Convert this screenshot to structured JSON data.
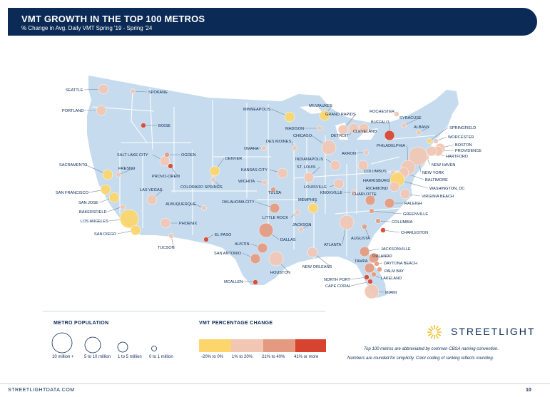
{
  "header": {
    "title": "VMT GROWTH IN THE TOP 100 METROS",
    "subtitle": "% Change in Avg. Daily VMT Spring '19 - Spring '24"
  },
  "colors": {
    "navy": "#0b2a55",
    "land": "#c6dcee",
    "state_border": "#ffffff",
    "neg_20_to_0": "#fcd56b",
    "pos_1_to_20": "#f1c6b3",
    "pos_21_to_40": "#e49a80",
    "pos_41_plus": "#d7432e"
  },
  "cities": [
    {
      "name": "SEATTLE",
      "pop": "1 to 5 million",
      "change": "1% to 20%"
    },
    {
      "name": "SPOKANE",
      "pop": "0 to 1 million",
      "change": "1% to 20%"
    },
    {
      "name": "PORTLAND",
      "pop": "1 to 5 million",
      "change": "1% to 20%"
    },
    {
      "name": "BOISE",
      "pop": "0 to 1 million",
      "change": "41% or more"
    },
    {
      "name": "SACRAMENTO",
      "pop": "1 to 5 million",
      "change": "-20% to 0%"
    },
    {
      "name": "FRESNO",
      "pop": "0 to 1 million",
      "change": "1% to 20%"
    },
    {
      "name": "SAN FRANCISCO",
      "pop": "1 to 5 million",
      "change": "-20% to 0%"
    },
    {
      "name": "SAN JOSE",
      "pop": "1 to 5 million",
      "change": "-20% to 0%"
    },
    {
      "name": "BAKERSFIELD",
      "pop": "0 to 1 million",
      "change": "1% to 20%"
    },
    {
      "name": "LOS ANGELES",
      "pop": "10 million +",
      "change": "-20% to 0%"
    },
    {
      "name": "SAN DIEGO",
      "pop": "1 to 5 million",
      "change": "-20% to 0%"
    },
    {
      "name": "LAS VEGAS",
      "pop": "1 to 5 million",
      "change": "1% to 20%"
    },
    {
      "name": "SALT LAKE CITY",
      "pop": "1 to 5 million",
      "change": "1% to 20%"
    },
    {
      "name": "OGDEN",
      "pop": "0 to 1 million",
      "change": "21% to 40%"
    },
    {
      "name": "PROVO-OREM",
      "pop": "0 to 1 million",
      "change": "41% or more"
    },
    {
      "name": "PHOENIX",
      "pop": "1 to 5 million",
      "change": "1% to 20%"
    },
    {
      "name": "TUCSON",
      "pop": "0 to 1 million",
      "change": "1% to 20%"
    },
    {
      "name": "ALBUQUERQUE",
      "pop": "0 to 1 million",
      "change": "1% to 20%"
    },
    {
      "name": "EL PASO",
      "pop": "0 to 1 million",
      "change": "41% or more"
    },
    {
      "name": "DENVER",
      "pop": "1 to 5 million",
      "change": "-20% to 0%"
    },
    {
      "name": "COLORADO SPRINGS",
      "pop": "0 to 1 million",
      "change": "1% to 20%"
    },
    {
      "name": "MINNEAPOLIS",
      "pop": "1 to 5 million",
      "change": "-20% to 0%"
    },
    {
      "name": "OMAHA",
      "pop": "0 to 1 million",
      "change": "1% to 20%"
    },
    {
      "name": "KANSAS CITY",
      "pop": "1 to 5 million",
      "change": "1% to 20%"
    },
    {
      "name": "WICHITA",
      "pop": "0 to 1 million",
      "change": "1% to 20%"
    },
    {
      "name": "OKLAHOMA CITY",
      "pop": "1 to 5 million",
      "change": "21% to 40%"
    },
    {
      "name": "TULSA",
      "pop": "0 to 1 million",
      "change": "21% to 40%"
    },
    {
      "name": "DALLAS",
      "pop": "5 to 10 million",
      "change": "21% to 40%"
    },
    {
      "name": "AUSTIN",
      "pop": "1 to 5 million",
      "change": "21% to 40%"
    },
    {
      "name": "SAN ANTONIO",
      "pop": "1 to 5 million",
      "change": "21% to 40%"
    },
    {
      "name": "HOUSTON",
      "pop": "5 to 10 million",
      "change": "1% to 20%"
    },
    {
      "name": "MCALLEN",
      "pop": "0 to 1 million",
      "change": "41% or more"
    },
    {
      "name": "DES MOINES",
      "pop": "0 to 1 million",
      "change": "1% to 20%"
    },
    {
      "name": "ST. LOUIS",
      "pop": "1 to 5 million",
      "change": "1% to 20%"
    },
    {
      "name": "MEMPHIS",
      "pop": "1 to 5 million",
      "change": "-20% to 0%"
    },
    {
      "name": "LITTLE ROCK",
      "pop": "0 to 1 million",
      "change": "1% to 20%"
    },
    {
      "name": "JACKSON",
      "pop": "0 to 1 million",
      "change": "1% to 20%"
    },
    {
      "name": "NEW ORLEANS",
      "pop": "1 to 5 million",
      "change": "1% to 20%"
    },
    {
      "name": "MILWAUKEE",
      "pop": "1 to 5 million",
      "change": "-20% to 0%"
    },
    {
      "name": "MADISON",
      "pop": "0 to 1 million",
      "change": "1% to 20%"
    },
    {
      "name": "CHICAGO",
      "pop": "5 to 10 million",
      "change": "1% to 20%"
    },
    {
      "name": "GRAND RAPIDS",
      "pop": "1 to 5 million",
      "change": "1% to 20%"
    },
    {
      "name": "DETROIT",
      "pop": "1 to 5 million",
      "change": "1% to 20%"
    },
    {
      "name": "INDIANAPOLIS",
      "pop": "1 to 5 million",
      "change": "1% to 20%"
    },
    {
      "name": "LOUISVILLE",
      "pop": "1 to 5 million",
      "change": "1% to 20%"
    },
    {
      "name": "KNOXVILLE",
      "pop": "0 to 1 million",
      "change": "1% to 20%"
    },
    {
      "name": "CLEVELAND",
      "pop": "1 to 5 million",
      "change": "1% to 20%"
    },
    {
      "name": "AKRON",
      "pop": "0 to 1 million",
      "change": "1% to 20%"
    },
    {
      "name": "COLUMBUS",
      "pop": "1 to 5 million",
      "change": "1% to 20%"
    },
    {
      "name": "ATLANTA",
      "pop": "5 to 10 million",
      "change": "1% to 20%"
    },
    {
      "name": "AUGUSTA",
      "pop": "0 to 1 million",
      "change": "21% to 40%"
    },
    {
      "name": "CHARLOTTE",
      "pop": "1 to 5 million",
      "change": "21% to 40%"
    },
    {
      "name": "GREENVILLE",
      "pop": "0 to 1 million",
      "change": "21% to 40%"
    },
    {
      "name": "COLUMBIA",
      "pop": "0 to 1 million",
      "change": "21% to 40%"
    },
    {
      "name": "CHARLESTON",
      "pop": "0 to 1 million",
      "change": "41% or more"
    },
    {
      "name": "RALEIGH",
      "pop": "1 to 5 million",
      "change": "21% to 40%"
    },
    {
      "name": "JACKSONVILLE",
      "pop": "1 to 5 million",
      "change": "21% to 40%"
    },
    {
      "name": "ORLANDO",
      "pop": "1 to 5 million",
      "change": "21% to 40%"
    },
    {
      "name": "DAYTONA BEACH",
      "pop": "0 to 1 million",
      "change": "21% to 40%"
    },
    {
      "name": "PALM BAY",
      "pop": "0 to 1 million",
      "change": "21% to 40%"
    },
    {
      "name": "LAKELAND",
      "pop": "0 to 1 million",
      "change": "21% to 40%"
    },
    {
      "name": "TAMPA",
      "pop": "1 to 5 million",
      "change": "21% to 40%"
    },
    {
      "name": "NORTH PORT",
      "pop": "0 to 1 million",
      "change": "41% or more"
    },
    {
      "name": "CAPE CORAL",
      "pop": "0 to 1 million",
      "change": "41% or more"
    },
    {
      "name": "MIAMI",
      "pop": "5 to 10 million",
      "change": "1% to 20%"
    },
    {
      "name": "ROCHESTER",
      "pop": "0 to 1 million",
      "change": "1% to 20%"
    },
    {
      "name": "BUFFALO",
      "pop": "1 to 5 million",
      "change": "41% or more"
    },
    {
      "name": "SYRACUSE",
      "pop": "0 to 1 million",
      "change": "1% to 20%"
    },
    {
      "name": "ALBANY",
      "pop": "0 to 1 million",
      "change": "1% to 20%"
    },
    {
      "name": "SPRINGFIELD",
      "pop": "0 to 1 million",
      "change": "-20% to 0%"
    },
    {
      "name": "WORCESTER",
      "pop": "0 to 1 million",
      "change": "1% to 20%"
    },
    {
      "name": "BOSTON",
      "pop": "1 to 5 million",
      "change": "1% to 20%"
    },
    {
      "name": "PROVIDENCE",
      "pop": "1 to 5 million",
      "change": "1% to 20%"
    },
    {
      "name": "HARTFORD",
      "pop": "1 to 5 million",
      "change": "1% to 20%"
    },
    {
      "name": "NEW HAVEN",
      "pop": "0 to 1 million",
      "change": "1% to 20%"
    },
    {
      "name": "NEW YORK",
      "pop": "10 million +",
      "change": "1% to 20%"
    },
    {
      "name": "PHILADELPHIA",
      "pop": "5 to 10 million",
      "change": "1% to 20%"
    },
    {
      "name": "HARRISBURG",
      "pop": "0 to 1 million",
      "change": "1% to 20%"
    },
    {
      "name": "BALTIMORE",
      "pop": "1 to 5 million",
      "change": "1% to 20%"
    },
    {
      "name": "WASHINGTON, DC",
      "pop": "5 to 10 million",
      "change": "-20% to 0%"
    },
    {
      "name": "RICHMOND",
      "pop": "1 to 5 million",
      "change": "1% to 20%"
    },
    {
      "name": "VIRGINIA BEACH",
      "pop": "1 to 5 million",
      "change": "1% to 20%"
    }
  ],
  "legend": {
    "pop_title": "METRO POPULATION",
    "pop_labels": [
      "10 million +",
      "5 to 10 million",
      "1 to 5 million",
      "0 to 1 million"
    ],
    "vmt_title": "VMT PERCENTAGE CHANGE",
    "vmt_labels": [
      "-20% to 0%",
      "1% to 20%",
      "21% to 40%",
      "41% or more"
    ]
  },
  "notes": {
    "line1": "Top 100 metros are abbreviated by common CBSA naming convention.",
    "line2": "Numbers are rounded for simplicity. Color coding of ranking reflects rounding."
  },
  "brand": {
    "name": "STREETLIGHT",
    "icon": "streetlight-sun-icon"
  },
  "footer": {
    "url": "STREETLIGHTDATA.COM",
    "page": "10"
  }
}
